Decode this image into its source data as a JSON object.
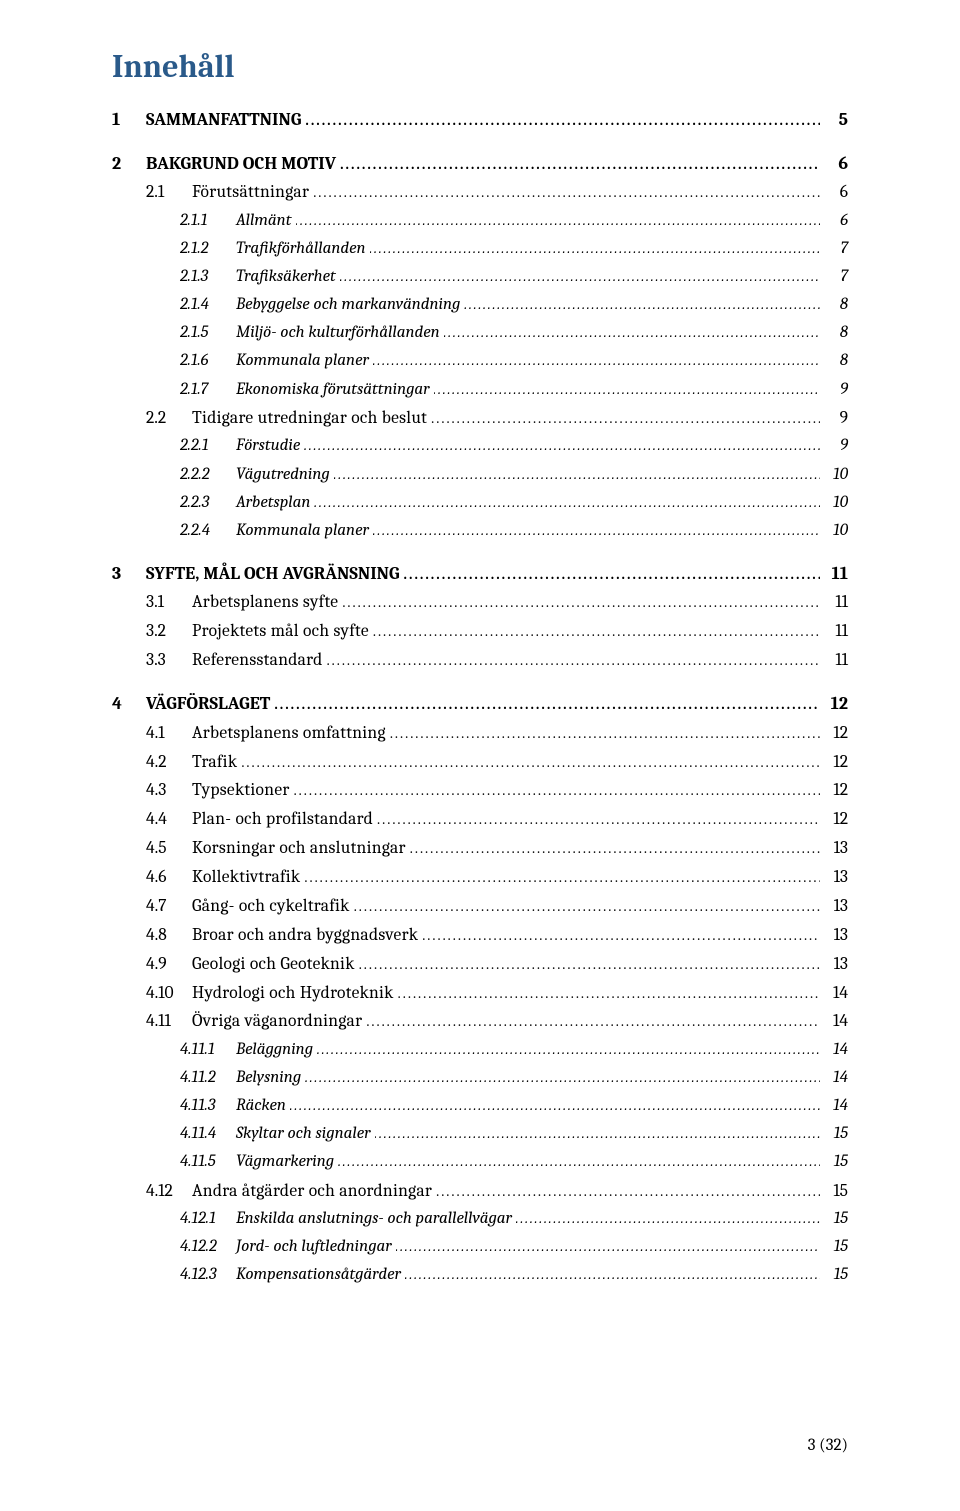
{
  "title": "Innehåll",
  "footer": "3 (32)",
  "toc": [
    {
      "level": 1,
      "num": "1",
      "label": "SAMMANFATTNING",
      "page": "5"
    },
    {
      "level": 1,
      "num": "2",
      "label": "BAKGRUND OCH MOTIV",
      "page": "6"
    },
    {
      "level": 2,
      "num": "2.1",
      "label": "Förutsättningar",
      "sc": true,
      "page": "6"
    },
    {
      "level": 3,
      "num": "2.1.1",
      "label": "Allmänt",
      "page": "6"
    },
    {
      "level": 3,
      "num": "2.1.2",
      "label": "Trafikförhållanden",
      "page": "7"
    },
    {
      "level": 3,
      "num": "2.1.3",
      "label": "Trafiksäkerhet",
      "page": "7"
    },
    {
      "level": 3,
      "num": "2.1.4",
      "label": "Bebyggelse och markanvändning",
      "page": "8"
    },
    {
      "level": 3,
      "num": "2.1.5",
      "label": "Miljö- och kulturförhållanden",
      "page": "8"
    },
    {
      "level": 3,
      "num": "2.1.6",
      "label": "Kommunala planer",
      "page": "8"
    },
    {
      "level": 3,
      "num": "2.1.7",
      "label": "Ekonomiska förutsättningar",
      "page": "9"
    },
    {
      "level": 2,
      "num": "2.2",
      "label": "Tidigare utredningar och beslut",
      "sc": true,
      "page": "9"
    },
    {
      "level": 3,
      "num": "2.2.1",
      "label": "Förstudie",
      "page": "9"
    },
    {
      "level": 3,
      "num": "2.2.2",
      "label": "Vägutredning",
      "page": "10"
    },
    {
      "level": 3,
      "num": "2.2.3",
      "label": "Arbetsplan",
      "page": "10"
    },
    {
      "level": 3,
      "num": "2.2.4",
      "label": "Kommunala planer",
      "page": "10"
    },
    {
      "level": 1,
      "num": "3",
      "label": "SYFTE, MÅL OCH AVGRÄNSNING",
      "page": "11"
    },
    {
      "level": 2,
      "num": "3.1",
      "label": "Arbetsplanens syfte",
      "sc": true,
      "page": "11"
    },
    {
      "level": 2,
      "num": "3.2",
      "label": "Projektets mål och syfte",
      "sc": true,
      "page": "11"
    },
    {
      "level": 2,
      "num": "3.3",
      "label": "Referensstandard",
      "sc": true,
      "page": "11"
    },
    {
      "level": 1,
      "num": "4",
      "label": "VÄGFÖRSLAGET",
      "page": "12"
    },
    {
      "level": 2,
      "num": "4.1",
      "label": "Arbetsplanens omfattning",
      "sc": true,
      "page": "12"
    },
    {
      "level": 2,
      "num": "4.2",
      "label": "Trafik",
      "sc": true,
      "page": "12"
    },
    {
      "level": 2,
      "num": "4.3",
      "label": "Typsektioner",
      "sc": true,
      "page": "12"
    },
    {
      "level": 2,
      "num": "4.4",
      "label": "Plan- och profilstandard",
      "sc": true,
      "page": "12"
    },
    {
      "level": 2,
      "num": "4.5",
      "label": "Korsningar och anslutningar",
      "sc": true,
      "page": "13"
    },
    {
      "level": 2,
      "num": "4.6",
      "label": "Kollektivtrafik",
      "sc": true,
      "page": "13"
    },
    {
      "level": 2,
      "num": "4.7",
      "label": "Gång- och cykeltrafik",
      "sc": true,
      "page": "13"
    },
    {
      "level": 2,
      "num": "4.8",
      "label": "Broar och andra byggnadsverk",
      "sc": true,
      "page": "13"
    },
    {
      "level": 2,
      "num": "4.9",
      "label": "Geologi och Geoteknik",
      "sc": true,
      "page": "13"
    },
    {
      "level": 2,
      "num": "4.10",
      "label": "Hydrologi och Hydroteknik",
      "sc": true,
      "page": "14"
    },
    {
      "level": 2,
      "num": "4.11",
      "label": "Övriga väganordningar",
      "sc": true,
      "page": "14"
    },
    {
      "level": 3,
      "num": "4.11.1",
      "label": "Beläggning",
      "page": "14"
    },
    {
      "level": 3,
      "num": "4.11.2",
      "label": "Belysning",
      "page": "14"
    },
    {
      "level": 3,
      "num": "4.11.3",
      "label": "Räcken",
      "page": "14"
    },
    {
      "level": 3,
      "num": "4.11.4",
      "label": "Skyltar och signaler",
      "page": "15"
    },
    {
      "level": 3,
      "num": "4.11.5",
      "label": "Vägmarkering",
      "page": "15"
    },
    {
      "level": 2,
      "num": "4.12",
      "label": "Andra åtgärder och anordningar",
      "sc": true,
      "page": "15"
    },
    {
      "level": 3,
      "num": "4.12.1",
      "label": "Enskilda anslutnings- och parallellvägar",
      "page": "15"
    },
    {
      "level": 3,
      "num": "4.12.2",
      "label": "Jord- och luftledningar",
      "page": "15"
    },
    {
      "level": 3,
      "num": "4.12.3",
      "label": "Kompensationsåtgärder",
      "page": "15"
    }
  ]
}
